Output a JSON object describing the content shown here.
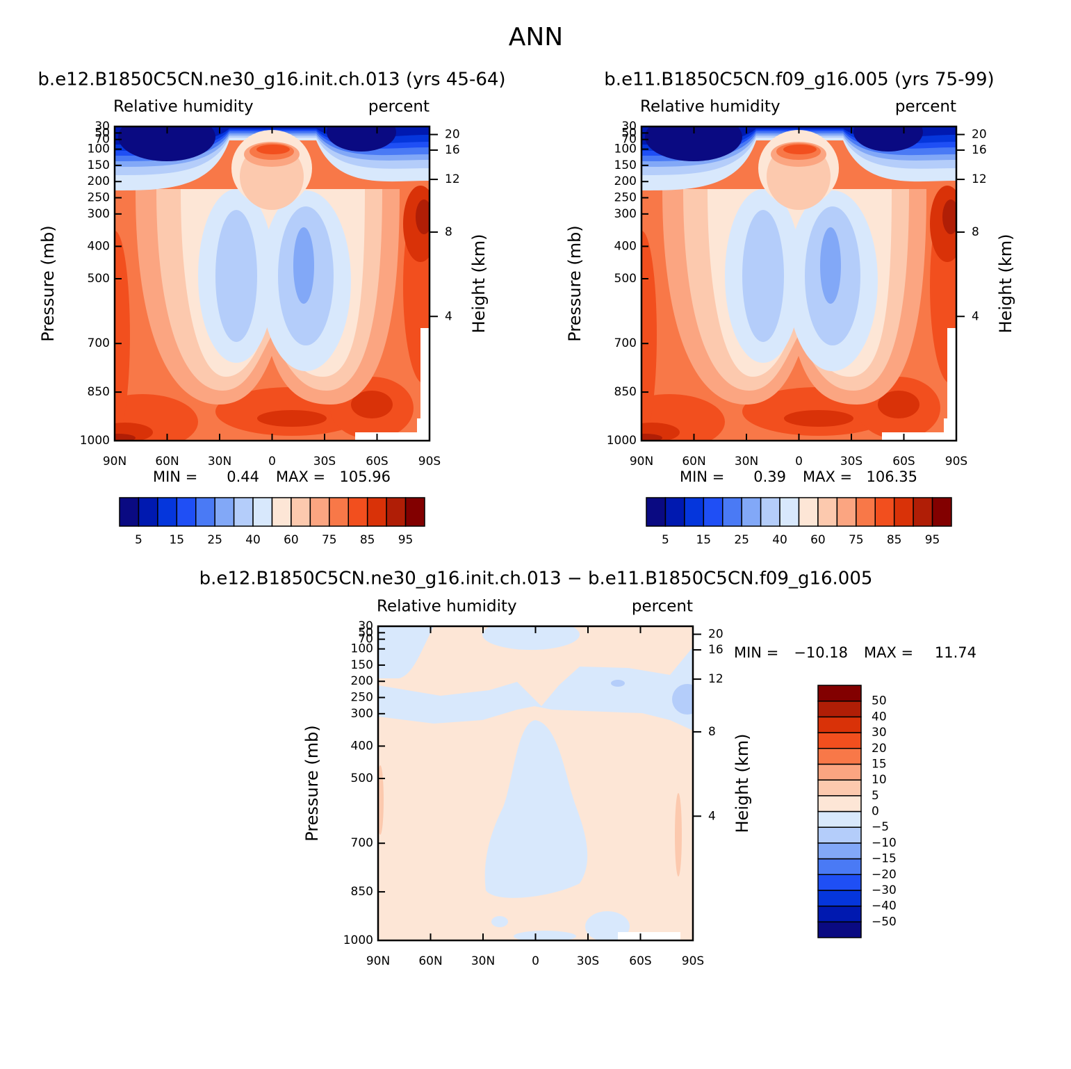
{
  "title": "ANN",
  "chart_data": [
    {
      "type": "contour",
      "subtitle": "b.e12.B1850C5CN.ne30_g16.init.ch.013 (yrs 45-64)",
      "left_label": "Relative humidity",
      "right_label": "percent",
      "y_label": "Pressure (mb)",
      "y2_label": "Height (km)",
      "ylim": [
        30,
        1000
      ],
      "yticks": [
        30,
        50,
        70,
        100,
        150,
        200,
        250,
        300,
        400,
        500,
        700,
        850,
        1000
      ],
      "y2ticks": [
        20,
        16,
        12,
        8,
        4
      ],
      "xlim": [
        90,
        -90
      ],
      "xticks": [
        {
          "value": 90,
          "label": "90N"
        },
        {
          "value": 60,
          "label": "60N"
        },
        {
          "value": 30,
          "label": "30N"
        },
        0,
        {
          "value": -30,
          "label": "30S"
        },
        {
          "value": -60,
          "label": "60S"
        },
        {
          "value": -90,
          "label": "90S"
        }
      ],
      "min_label": "MIN =",
      "min": 0.44,
      "max_label": "MAX =",
      "max": 105.96,
      "colorbar_orientation": "horizontal",
      "colors": [
        "#0a0a82",
        "#0019b0",
        "#0536dc",
        "#1f4ff5",
        "#4a7af5",
        "#82a8f7",
        "#b4cdfa",
        "#d8e8fc",
        "#fde6d6",
        "#fcc9ae",
        "#fba581",
        "#f87848",
        "#f24f1e",
        "#d93208",
        "#b01e06",
        "#820000"
      ],
      "colorbar_labels": [
        5,
        15,
        25,
        40,
        60,
        75,
        85,
        95
      ]
    },
    {
      "type": "contour",
      "subtitle": "b.e11.B1850C5CN.f09_g16.005 (yrs 75-99)",
      "left_label": "Relative humidity",
      "right_label": "percent",
      "y_label": "Pressure (mb)",
      "y2_label": "Height (km)",
      "ylim": [
        30,
        1000
      ],
      "yticks": [
        30,
        50,
        70,
        100,
        150,
        200,
        250,
        300,
        400,
        500,
        700,
        850,
        1000
      ],
      "y2ticks": [
        20,
        16,
        12,
        8,
        4
      ],
      "xlim": [
        90,
        -90
      ],
      "xticks": [
        {
          "value": 90,
          "label": "90N"
        },
        {
          "value": 60,
          "label": "60N"
        },
        {
          "value": 30,
          "label": "30N"
        },
        0,
        {
          "value": -30,
          "label": "30S"
        },
        {
          "value": -60,
          "label": "60S"
        },
        {
          "value": -90,
          "label": "90S"
        }
      ],
      "min_label": "MIN =",
      "min": 0.39,
      "max_label": "MAX =",
      "max": 106.35,
      "colorbar_orientation": "horizontal",
      "colors": [
        "#0a0a82",
        "#0019b0",
        "#0536dc",
        "#1f4ff5",
        "#4a7af5",
        "#82a8f7",
        "#b4cdfa",
        "#d8e8fc",
        "#fde6d6",
        "#fcc9ae",
        "#fba581",
        "#f87848",
        "#f24f1e",
        "#d93208",
        "#b01e06",
        "#820000"
      ],
      "colorbar_labels": [
        5,
        15,
        25,
        40,
        60,
        75,
        85,
        95
      ]
    },
    {
      "type": "contour",
      "subtitle": "b.e12.B1850C5CN.ne30_g16.init.ch.013 − b.e11.B1850C5CN.f09_g16.005",
      "left_label": "Relative humidity",
      "right_label": "percent",
      "y_label": "Pressure (mb)",
      "y2_label": "Height (km)",
      "ylim": [
        30,
        1000
      ],
      "yticks": [
        30,
        50,
        70,
        100,
        150,
        200,
        250,
        300,
        400,
        500,
        700,
        850,
        1000
      ],
      "y2ticks": [
        20,
        16,
        12,
        8,
        4
      ],
      "xlim": [
        90,
        -90
      ],
      "xticks": [
        {
          "value": 90,
          "label": "90N"
        },
        {
          "value": 60,
          "label": "60N"
        },
        {
          "value": 30,
          "label": "30N"
        },
        0,
        {
          "value": -30,
          "label": "30S"
        },
        {
          "value": -60,
          "label": "60S"
        },
        {
          "value": -90,
          "label": "90S"
        }
      ],
      "min_label": "MIN =",
      "min": {
        "value": -10.18,
        "label": "−10.18"
      },
      "max_label": "MAX =",
      "max": 11.74,
      "colorbar_orientation": "vertical",
      "colors": [
        "#0a0a82",
        "#0019b0",
        "#0536dc",
        "#1f4ff5",
        "#4a7af5",
        "#82a8f7",
        "#b4cdfa",
        "#d8e8fc",
        "#fde6d6",
        "#fcc9ae",
        "#fba581",
        "#f87848",
        "#f24f1e",
        "#d93208",
        "#b01e06",
        "#820000"
      ],
      "colorbar_labels": [
        {
          "value": -50,
          "label": "−50"
        },
        {
          "value": -40,
          "label": "−40"
        },
        {
          "value": -30,
          "label": "−30"
        },
        {
          "value": -20,
          "label": "−20"
        },
        {
          "value": -15,
          "label": "−15"
        },
        {
          "value": -10,
          "label": "−10"
        },
        {
          "value": -5,
          "label": "−5"
        },
        0,
        5,
        10,
        15,
        20,
        30,
        40,
        50
      ]
    }
  ]
}
